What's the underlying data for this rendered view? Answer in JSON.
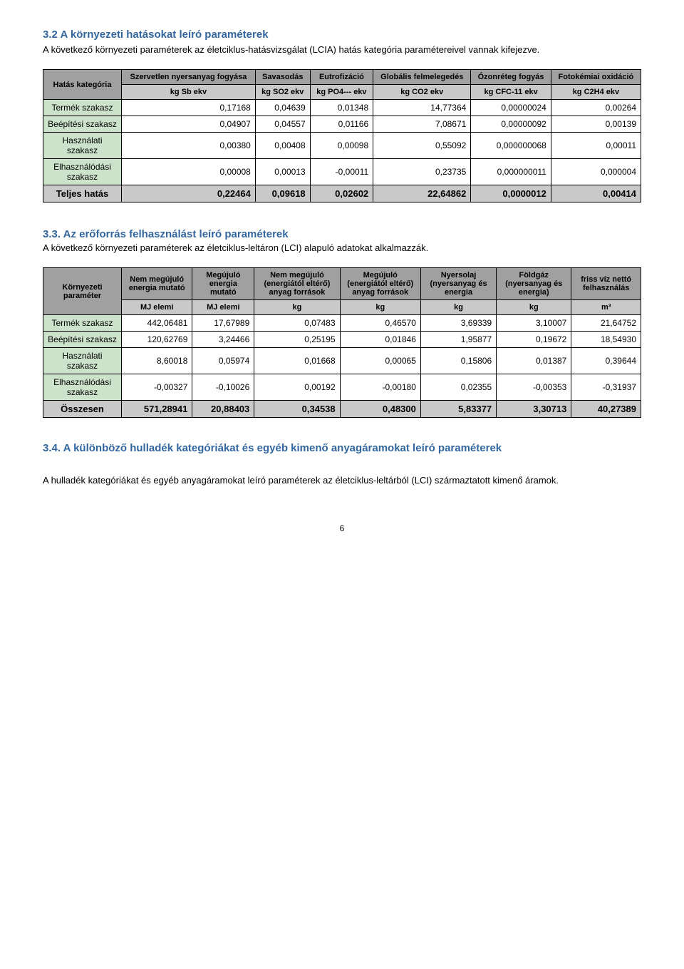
{
  "sec32": {
    "title": "3.2 A környezeti hatásokat leíró paraméterek",
    "intro": "A következő környezeti paraméterek az életciklus-hatásvizsgálat (LCIA) hatás kategória paramétereivel vannak kifejezve.",
    "corner": "Hatás kategória",
    "headers1": [
      "Szervetlen nyersanyag fogyása",
      "Savasodás",
      "Eutrofizáció",
      "Globális felmelegedés",
      "Ózonréteg fogyás",
      "Fotokémiai oxidáció"
    ],
    "headers2": [
      "kg Sb ekv",
      "kg SO2  ekv",
      "kg PO4--- ekv",
      "kg CO2 ekv",
      "kg CFC-11 ekv",
      "kg C2H4 ekv"
    ],
    "rows": [
      {
        "label": "Termék szakasz",
        "v": [
          "0,17168",
          "0,04639",
          "0,01348",
          "14,77364",
          "0,00000024",
          "0,00264"
        ]
      },
      {
        "label": "Beépítési szakasz",
        "v": [
          "0,04907",
          "0,04557",
          "0,01166",
          "7,08671",
          "0,00000092",
          "0,00139"
        ]
      },
      {
        "label": "Használati szakasz",
        "v": [
          "0,00380",
          "0,00408",
          "0,00098",
          "0,55092",
          "0,000000068",
          "0,00011"
        ]
      },
      {
        "label": "Elhasználódási szakasz",
        "v": [
          "0,00008",
          "0,00013",
          "-0,00011",
          "0,23735",
          "0,000000011",
          "0,000004"
        ]
      }
    ],
    "total": {
      "label": "Teljes hatás",
      "v": [
        "0,22464",
        "0,09618",
        "0,02602",
        "22,64862",
        "0,0000012",
        "0,00414"
      ]
    }
  },
  "sec33": {
    "title": "3.3. Az erőforrás felhasználást leíró paraméterek",
    "intro": "A következő környezeti paraméterek az életciklus-leltáron (LCI) alapuló adatokat alkalmazzák.",
    "corner": "Környezeti paraméter",
    "headers1": [
      "Nem megújuló energia mutató",
      "Megújuló energia mutató",
      "Nem megújuló (energiától eltérő) anyag források",
      "Megújuló (energiától eltérő) anyag források",
      "Nyersolaj (nyersanyag és energia",
      "Földgáz (nyersanyag és energia)",
      "friss víz nettó felhasználás"
    ],
    "headers2": [
      "MJ elemi",
      "MJ elemi",
      "kg",
      "kg",
      "kg",
      "kg",
      "m³"
    ],
    "rows": [
      {
        "label": "Termék szakasz",
        "v": [
          "442,06481",
          "17,67989",
          "0,07483",
          "0,46570",
          "3,69339",
          "3,10007",
          "21,64752"
        ]
      },
      {
        "label": "Beépítési szakasz",
        "v": [
          "120,62769",
          "3,24466",
          "0,25195",
          "0,01846",
          "1,95877",
          "0,19672",
          "18,54930"
        ]
      },
      {
        "label": "Használati szakasz",
        "v": [
          "8,60018",
          "0,05974",
          "0,01668",
          "0,00065",
          "0,15806",
          "0,01387",
          "0,39644"
        ]
      },
      {
        "label": "Elhasználódási szakasz",
        "v": [
          "-0,00327",
          "-0,10026",
          "0,00192",
          "-0,00180",
          "0,02355",
          "-0,00353",
          "-0,31937"
        ]
      }
    ],
    "total": {
      "label": "Összesen",
      "v": [
        "571,28941",
        "20,88403",
        "0,34538",
        "0,48300",
        "5,83377",
        "3,30713",
        "40,27389"
      ]
    }
  },
  "sec34": {
    "title": "3.4. A különböző hulladék kategóriákat és egyéb kimenő anyagáramokat leíró paraméterek",
    "body": "A hulladék kategóriákat és egyéb anyagáramokat leíró paraméterek az életciklus-leltárból (LCI) származtatott kimenő áramok."
  },
  "pagenum": "6"
}
